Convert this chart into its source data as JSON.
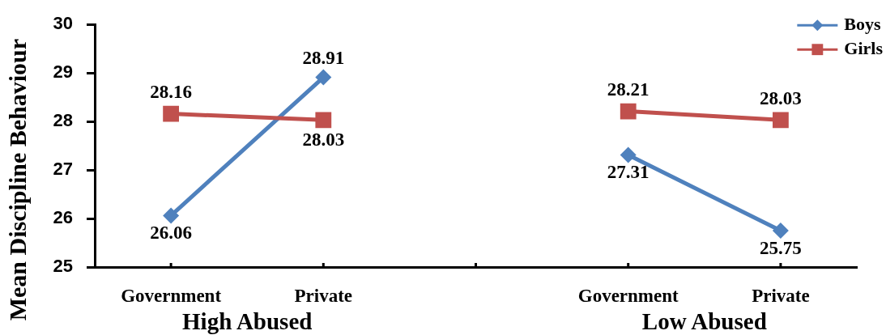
{
  "chart_data": {
    "type": "line",
    "ylabel": "Mean Discipline Behaviour",
    "categories": [
      "Government",
      "Private",
      null,
      "Government",
      "Private"
    ],
    "series": [
      {
        "name": "Boys",
        "color": "#4f81bd",
        "marker": "diamond",
        "values": [
          26.06,
          28.91,
          null,
          27.31,
          25.75
        ]
      },
      {
        "name": "Girls",
        "color": "#c0504d",
        "marker": "square",
        "values": [
          28.16,
          28.03,
          null,
          28.21,
          28.03
        ]
      }
    ],
    "ylim": [
      25,
      30
    ],
    "yticks": [
      25,
      26,
      27,
      28,
      29,
      30
    ],
    "data_labels": true,
    "legend": "top right",
    "grid": false,
    "line_style": "solid",
    "annotations": [
      "High Abused",
      "Low Abused"
    ]
  }
}
